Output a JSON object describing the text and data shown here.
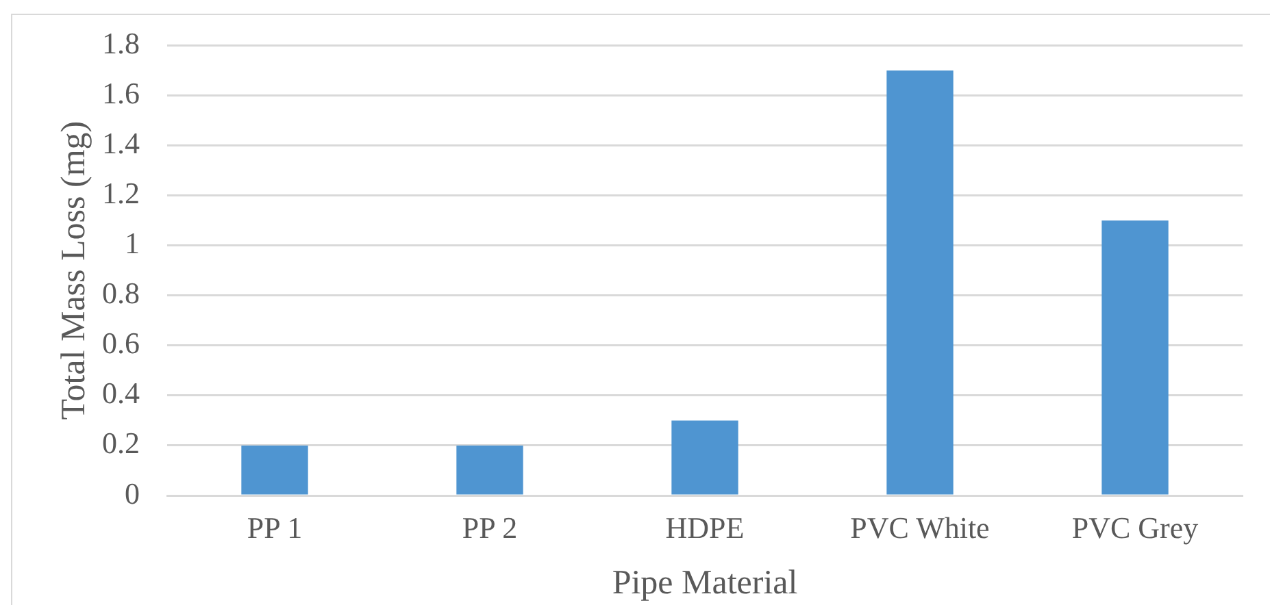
{
  "chart_data": {
    "type": "bar",
    "xlabel": "Pipe Material",
    "ylabel": "Total Mass Loss (mg)",
    "categories": [
      "PP 1",
      "PP 2",
      "HDPE",
      "PVC White",
      "PVC Grey"
    ],
    "values": [
      0.2,
      0.2,
      0.3,
      1.7,
      1.1
    ],
    "color": "#4f95d1",
    "ylim": [
      0,
      1.8
    ],
    "yticks": [
      0,
      0.2,
      0.4,
      0.6,
      0.8,
      1,
      1.2,
      1.4,
      1.6,
      1.8
    ],
    "grid": "y",
    "legend": false
  }
}
